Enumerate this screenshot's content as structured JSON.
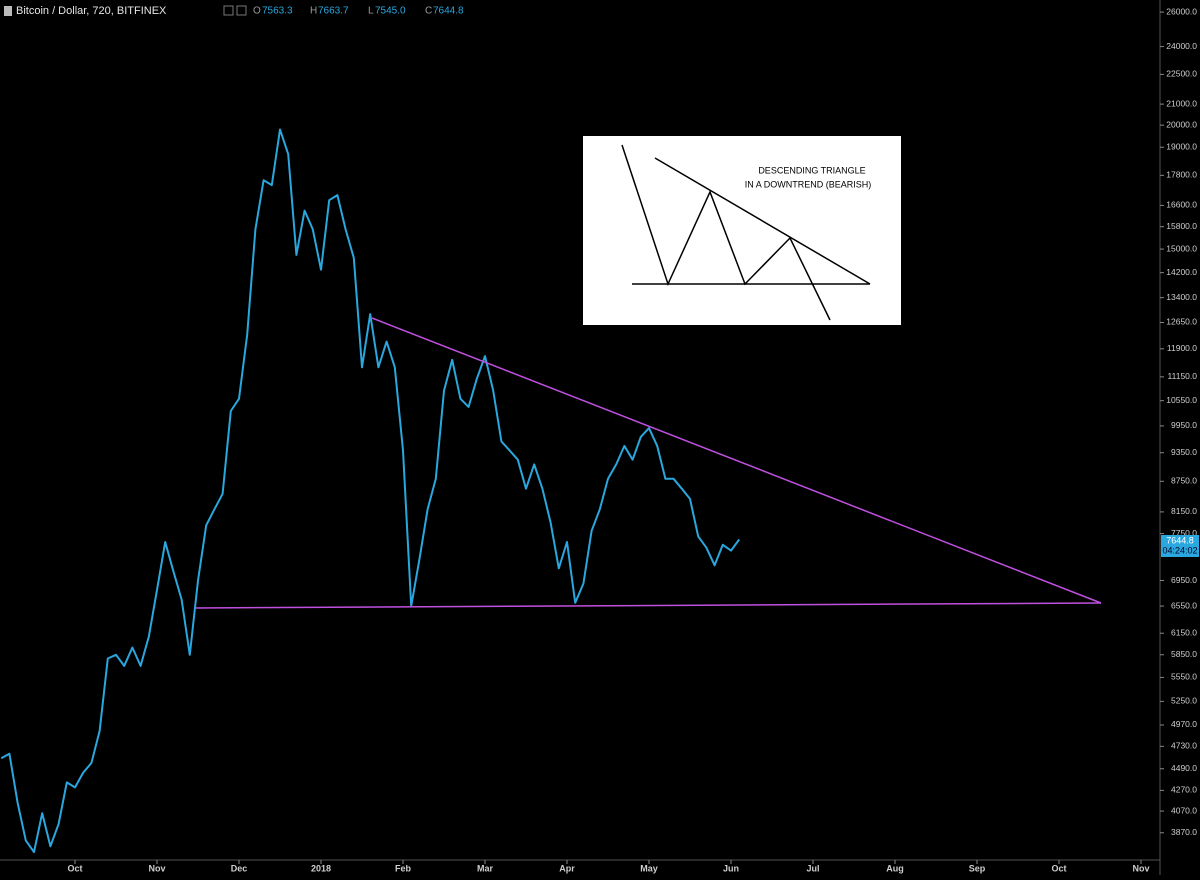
{
  "header": {
    "symbol": "Bitcoin / Dollar, 720, BITFINEX",
    "o_label": "O",
    "o_value": "7563.3",
    "h_label": "H",
    "h_value": "7663.7",
    "l_label": "L",
    "l_value": "7545.0",
    "c_label": "C",
    "c_value": "7644.8"
  },
  "axis_badge": {
    "price": "7644.8",
    "countdown": "04:24:02"
  },
  "inset": {
    "line1": "DESCENDING TRIANGLE",
    "line2": "IN A DOWNTREND (BEARISH)"
  },
  "chart_data": {
    "type": "line",
    "log_scale": true,
    "grid": false,
    "categories": [
      null,
      null,
      null,
      null,
      null,
      null,
      null,
      null,
      null,
      "Oct",
      null,
      null,
      null,
      null,
      null,
      null,
      null,
      null,
      null,
      "Nov",
      null,
      null,
      null,
      null,
      null,
      null,
      null,
      null,
      null,
      "Dec",
      null,
      null,
      null,
      null,
      null,
      null,
      null,
      null,
      null,
      "2018",
      null,
      null,
      null,
      null,
      null,
      null,
      null,
      null,
      null,
      "Feb",
      null,
      null,
      null,
      null,
      null,
      null,
      null,
      null,
      null,
      "Mar",
      null,
      null,
      null,
      null,
      null,
      null,
      null,
      null,
      null,
      "Apr",
      null,
      null,
      null,
      null,
      null,
      null,
      null,
      null,
      null,
      "May",
      null,
      null,
      null,
      null,
      null,
      null,
      null,
      null,
      null,
      "Jun",
      null,
      null,
      null,
      null,
      null,
      null,
      null,
      null,
      null,
      "Jul",
      null,
      null,
      null,
      null,
      null,
      null,
      null,
      null,
      null,
      "Aug",
      null,
      null,
      null,
      null,
      null,
      null,
      null,
      null,
      null,
      "Sep",
      null,
      null,
      null,
      null,
      null,
      null,
      null,
      null,
      null,
      "Oct",
      null,
      null,
      null,
      null,
      null,
      null,
      null,
      null,
      null,
      "Nov",
      null,
      null
    ],
    "series": [
      {
        "name": "Bitcoin / Dollar",
        "color": "#2aa7de",
        "values": [
          4600,
          4650,
          4150,
          3800,
          3700,
          4050,
          3750,
          3950,
          4350,
          4300,
          4450,
          4550,
          4900,
          5800,
          5850,
          5700,
          5950,
          5700,
          6100,
          6800,
          7600,
          7100,
          6650,
          5850,
          6950,
          7900,
          8200,
          8500,
          10300,
          10600,
          12300,
          15700,
          17600,
          17400,
          19800,
          18700,
          14800,
          16400,
          15700,
          14300,
          16800,
          17000,
          15700,
          14700,
          11400,
          12900,
          11400,
          12100,
          11400,
          9400,
          6550,
          7300,
          8200,
          8800,
          10800,
          11600,
          10600,
          10400,
          11100,
          11700,
          10800,
          9600,
          9400,
          9200,
          8600,
          9100,
          8600,
          7950,
          7150,
          7600,
          6600,
          6900,
          7800,
          8200,
          8800,
          9100,
          9500,
          9200,
          9700,
          9900,
          9500,
          8800,
          8800,
          8600,
          8400,
          7700,
          7500,
          7200,
          7550,
          7450,
          7644.8,
          null,
          null,
          null,
          null,
          null,
          null,
          null,
          null,
          null,
          null,
          null,
          null,
          null,
          null,
          null,
          null,
          null,
          null,
          null,
          null,
          null,
          null,
          null,
          null,
          null,
          null,
          null,
          null,
          null,
          null,
          null,
          null,
          null,
          null,
          null,
          null,
          null,
          null,
          null,
          null,
          null,
          null,
          null,
          null,
          null,
          null,
          null,
          null,
          null,
          null,
          null
        ]
      }
    ],
    "ylim": [
      3633,
      26740
    ],
    "yticks": [
      {
        "value": 26000,
        "label": "26000.0"
      },
      {
        "value": 24000,
        "label": "24000.0"
      },
      {
        "value": 22500,
        "label": "22500.0"
      },
      {
        "value": 21000,
        "label": "21000.0"
      },
      {
        "value": 20000,
        "label": "20000.0"
      },
      {
        "value": 19000,
        "label": "19000.0"
      },
      {
        "value": 17800,
        "label": "17800.0"
      },
      {
        "value": 16600,
        "label": "16600.0"
      },
      {
        "value": 15800,
        "label": "15800.0"
      },
      {
        "value": 15000,
        "label": "15000.0"
      },
      {
        "value": 14200,
        "label": "14200.0"
      },
      {
        "value": 13400,
        "label": "13400.0"
      },
      {
        "value": 12650,
        "label": "12650.0"
      },
      {
        "value": 11900,
        "label": "11900.0"
      },
      {
        "value": 11150,
        "label": "11150.0"
      },
      {
        "value": 10550,
        "label": "10550.0"
      },
      {
        "value": 9950,
        "label": "9950.0"
      },
      {
        "value": 9350,
        "label": "9350.0"
      },
      {
        "value": 8750,
        "label": "8750.0"
      },
      {
        "value": 8150,
        "label": "8150.0"
      },
      {
        "value": 7750,
        "label": "7750.0"
      },
      {
        "value": 6950,
        "label": "6950.0"
      },
      {
        "value": 6550,
        "label": "6550.0"
      },
      {
        "value": 6150,
        "label": "6150.0"
      },
      {
        "value": 5850,
        "label": "5850.0"
      },
      {
        "value": 5550,
        "label": "5550.0"
      },
      {
        "value": 5250,
        "label": "5250.0"
      },
      {
        "value": 4970,
        "label": "4970.0"
      },
      {
        "value": 4730,
        "label": "4730.0"
      },
      {
        "value": 4490,
        "label": "4490.0"
      },
      {
        "value": 4270,
        "label": "4270.0"
      },
      {
        "value": 4070,
        "label": "4070.0"
      },
      {
        "value": 3870,
        "label": "3870.0"
      }
    ]
  }
}
